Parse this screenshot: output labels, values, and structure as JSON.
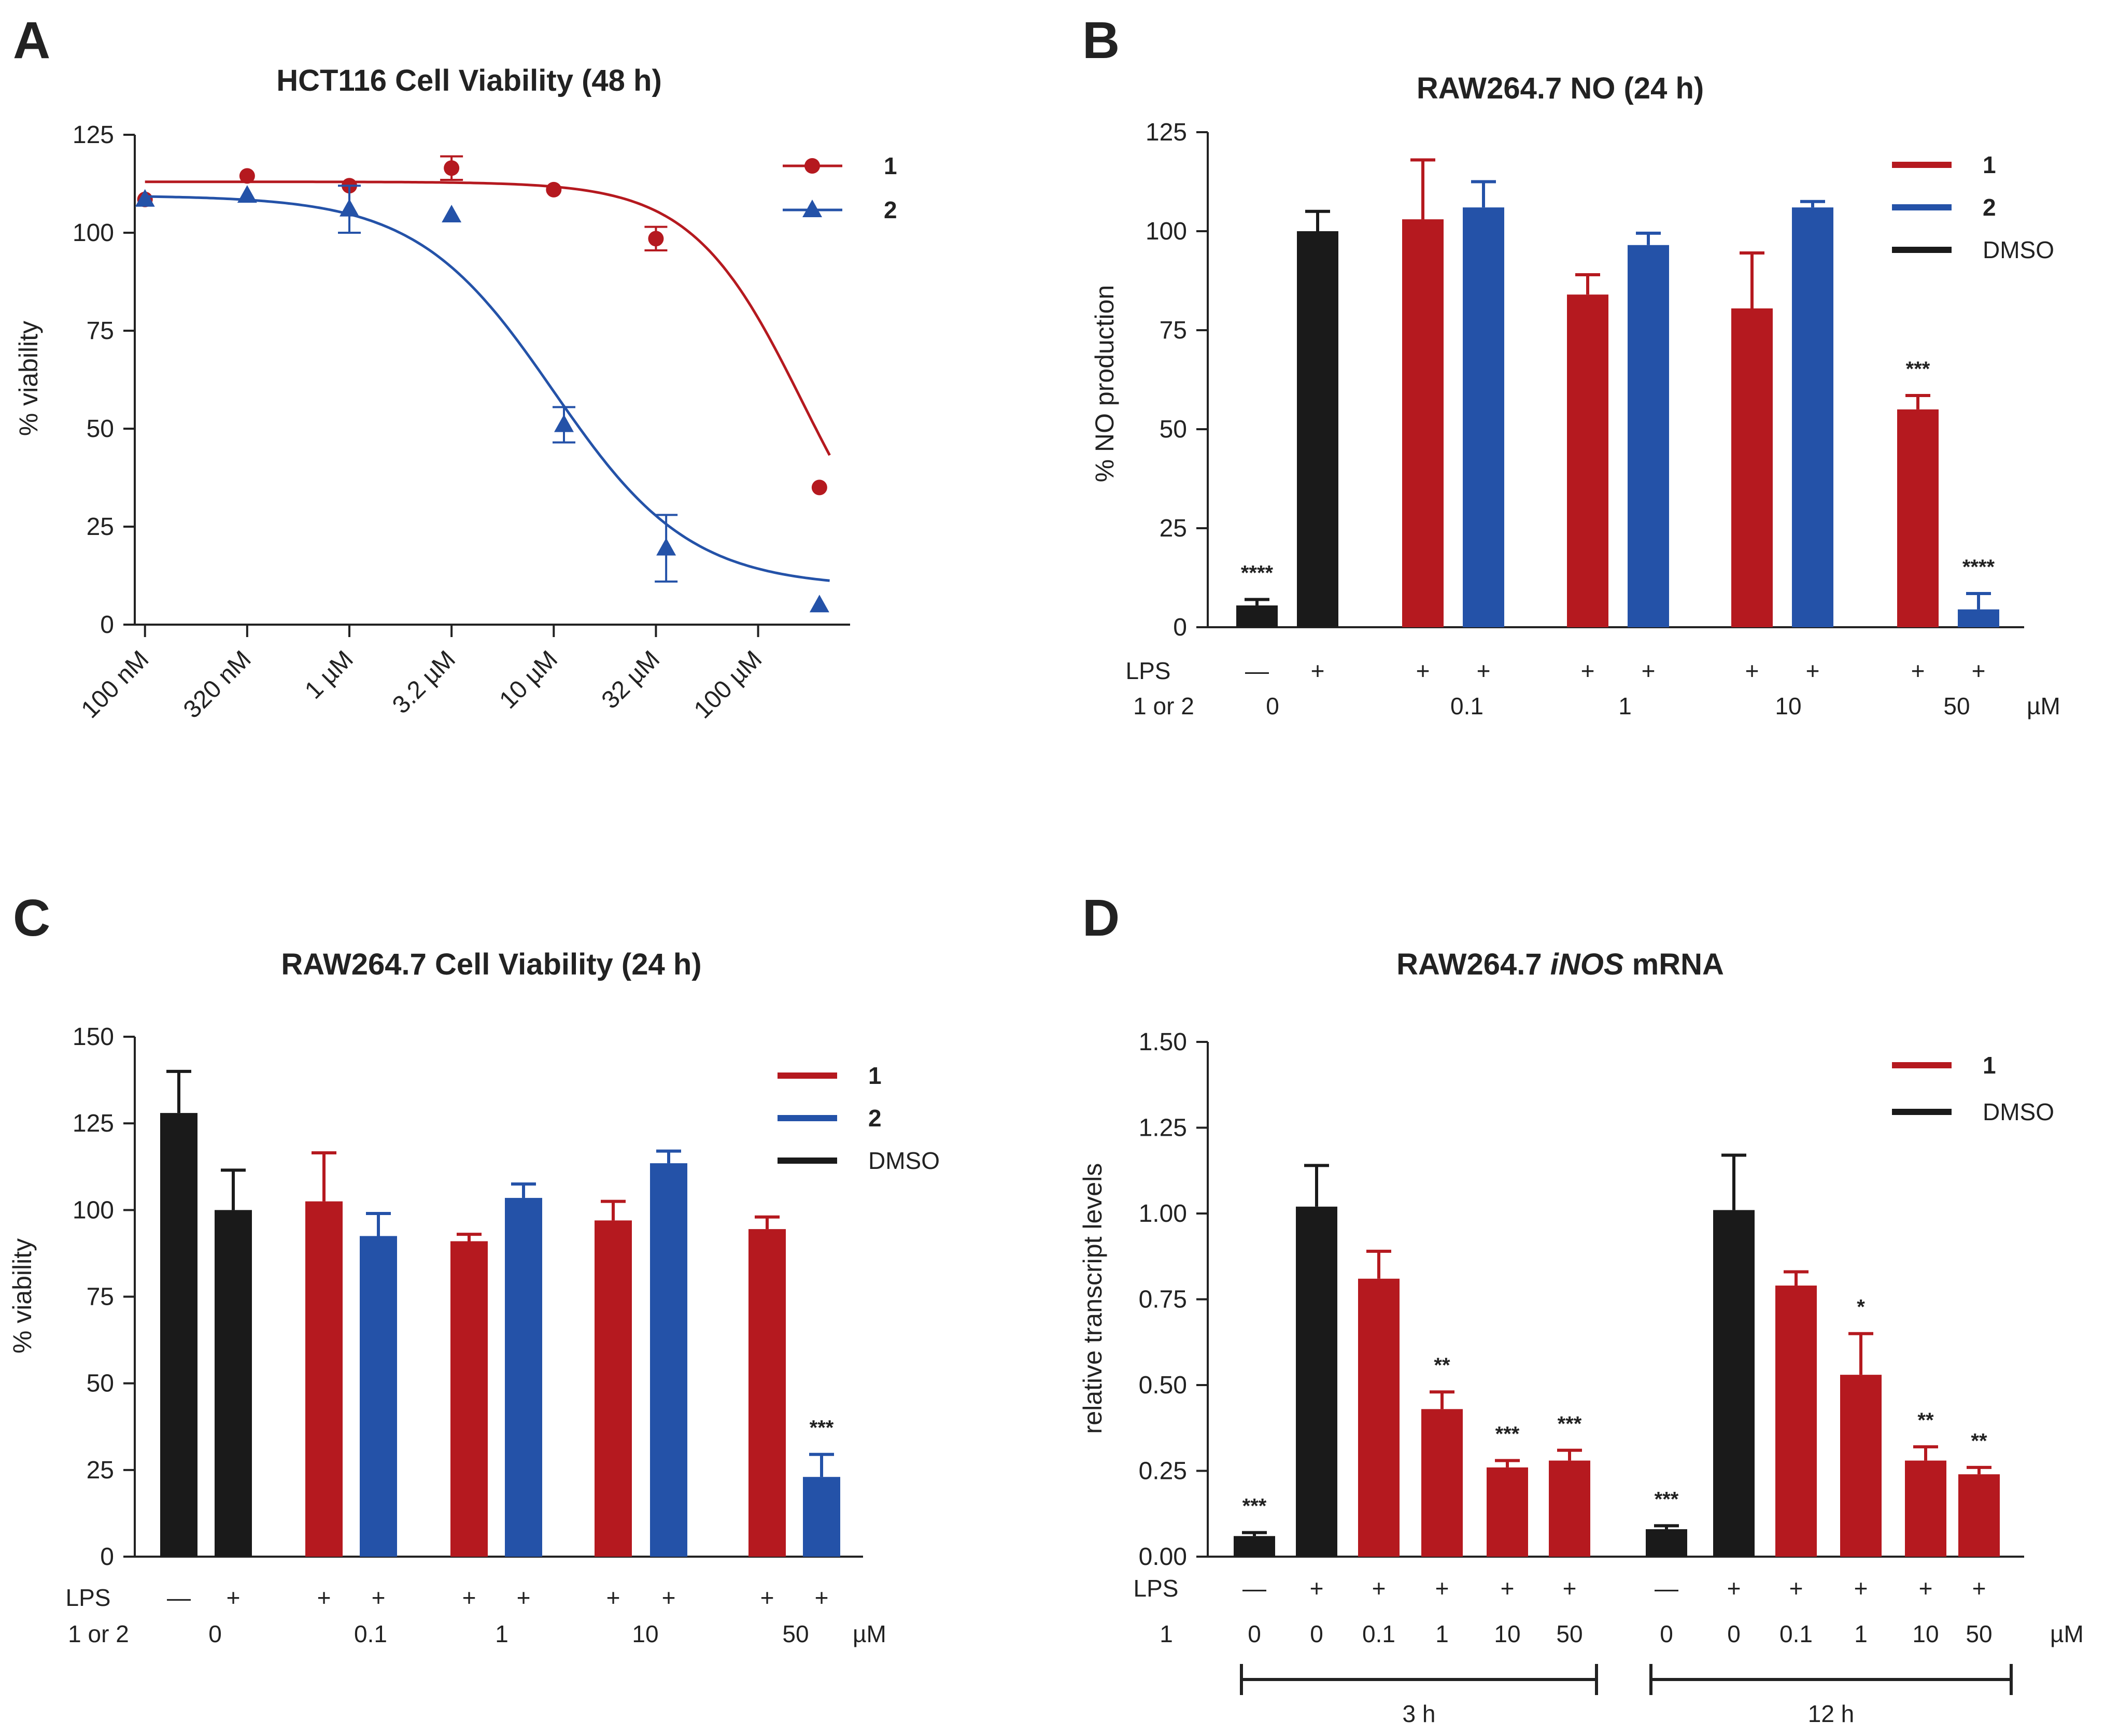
{
  "colors": {
    "red": "#b5191f",
    "blue": "#2452a8",
    "black": "#1a1a1a"
  },
  "chart_data": [
    {
      "panel": "A",
      "type": "scatter",
      "title": "HCT116 Cell Viability (48 h)",
      "xlabel": "",
      "ylabel": "% viability",
      "ylim": [
        0,
        125
      ],
      "yticks": [
        0,
        25,
        50,
        75,
        100,
        125
      ],
      "xscale": "log10 concentration (M)",
      "xlim_log": [
        -7.05,
        -3.55
      ],
      "xtick_labels": [
        "100 nM",
        "320 nM",
        "1 µM",
        "3.2 µM",
        "10 µM",
        "32 µM",
        "100 µM"
      ],
      "xtick_log": [
        -7.0,
        -6.5,
        -6.0,
        -5.5,
        -5.0,
        -4.5,
        -4.0
      ],
      "legend_position": "top-right",
      "series": [
        {
          "name": "1",
          "color": "red",
          "marker": "circle",
          "x_log": [
            -7.0,
            -6.5,
            -6.0,
            -5.5,
            -5.0,
            -4.5,
            -3.7
          ],
          "values": [
            108.5,
            114.5,
            112,
            116.5,
            111,
            98.5,
            35
          ],
          "errors": [
            0,
            0,
            0,
            3,
            0,
            3,
            0
          ],
          "fit": {
            "top": 113,
            "bottom": 0,
            "logIC50": -3.78,
            "hill": 1.6
          }
        },
        {
          "name": "2",
          "color": "blue",
          "marker": "triangle",
          "x_log": [
            -7.0,
            -6.5,
            -6.0,
            -5.5,
            -4.95,
            -4.45,
            -3.7
          ],
          "values": [
            108.5,
            109.5,
            106,
            104.5,
            51,
            19.5,
            5
          ],
          "errors": [
            0,
            0,
            6,
            0,
            4.5,
            8.5,
            0
          ],
          "fit": {
            "top": 109.5,
            "bottom": 9.5,
            "logIC50": -5.0,
            "hill": 1.3
          }
        }
      ]
    },
    {
      "panel": "B",
      "type": "bar",
      "title": "RAW264.7 NO (24 h)",
      "xlabel": "",
      "ylabel": "% NO production",
      "ylim": [
        0,
        125
      ],
      "yticks": [
        0,
        25,
        50,
        75,
        100,
        125
      ],
      "legend": [
        {
          "name": "1",
          "color": "red",
          "bold": true
        },
        {
          "name": "2",
          "color": "blue",
          "bold": true
        },
        {
          "name": "DMSO",
          "color": "black",
          "bold": false
        }
      ],
      "bars": [
        {
          "color": "black",
          "value": 5.5,
          "error": 1.5,
          "lps": "—",
          "sig": "****"
        },
        {
          "color": "black",
          "value": 100,
          "error": 5,
          "lps": "+",
          "sig": ""
        },
        {
          "color": "red",
          "value": 103,
          "error": 15,
          "lps": "+",
          "sig": ""
        },
        {
          "color": "blue",
          "value": 106,
          "error": 6.5,
          "lps": "+",
          "sig": ""
        },
        {
          "color": "red",
          "value": 84,
          "error": 5,
          "lps": "+",
          "sig": ""
        },
        {
          "color": "blue",
          "value": 96.5,
          "error": 3,
          "lps": "+",
          "sig": ""
        },
        {
          "color": "red",
          "value": 80.5,
          "error": 14,
          "lps": "+",
          "sig": ""
        },
        {
          "color": "blue",
          "value": 106,
          "error": 1.5,
          "lps": "+",
          "sig": ""
        },
        {
          "color": "red",
          "value": 55,
          "error": 3.5,
          "lps": "+",
          "sig": "***"
        },
        {
          "color": "blue",
          "value": 4.5,
          "error": 4,
          "lps": "+",
          "sig": "****"
        }
      ],
      "row_labels": {
        "lps": "LPS",
        "dose": "1 or 2",
        "unit": "µM"
      },
      "dose_labels": [
        "0",
        "0.1",
        "1",
        "10",
        "50"
      ]
    },
    {
      "panel": "C",
      "type": "bar",
      "title": "RAW264.7 Cell Viability (24 h)",
      "xlabel": "",
      "ylabel": "% viability",
      "ylim": [
        0,
        150
      ],
      "yticks": [
        0,
        25,
        50,
        75,
        100,
        125,
        150
      ],
      "legend": [
        {
          "name": "1",
          "color": "red",
          "bold": true
        },
        {
          "name": "2",
          "color": "blue",
          "bold": true
        },
        {
          "name": "DMSO",
          "color": "black",
          "bold": false
        }
      ],
      "bars": [
        {
          "color": "black",
          "value": 128,
          "error": 12,
          "lps": "—",
          "sig": ""
        },
        {
          "color": "black",
          "value": 100,
          "error": 11.5,
          "lps": "+",
          "sig": ""
        },
        {
          "color": "red",
          "value": 102.5,
          "error": 14,
          "lps": "+",
          "sig": ""
        },
        {
          "color": "blue",
          "value": 92.5,
          "error": 6.5,
          "lps": "+",
          "sig": ""
        },
        {
          "color": "red",
          "value": 91,
          "error": 2,
          "lps": "+",
          "sig": ""
        },
        {
          "color": "blue",
          "value": 103.5,
          "error": 4,
          "lps": "+",
          "sig": ""
        },
        {
          "color": "red",
          "value": 97,
          "error": 5.5,
          "lps": "+",
          "sig": ""
        },
        {
          "color": "blue",
          "value": 113.5,
          "error": 3.5,
          "lps": "+",
          "sig": ""
        },
        {
          "color": "red",
          "value": 94.5,
          "error": 3.5,
          "lps": "+",
          "sig": ""
        },
        {
          "color": "blue",
          "value": 23,
          "error": 6.5,
          "lps": "+",
          "sig": "***"
        }
      ],
      "row_labels": {
        "lps": "LPS",
        "dose": "1 or 2",
        "unit": "µM"
      },
      "dose_labels": [
        "0",
        "0.1",
        "1",
        "10",
        "50"
      ]
    },
    {
      "panel": "D",
      "type": "bar",
      "title": "RAW264.7 iNOS mRNA",
      "title_parts": [
        "RAW264.7 ",
        "iNOS",
        " mRNA"
      ],
      "xlabel": "",
      "ylabel": "relative transcript levels",
      "ylim": [
        0,
        1.5
      ],
      "yticks": [
        "0.00",
        "0.25",
        "0.50",
        "0.75",
        "1.00",
        "1.25",
        "1.50"
      ],
      "legend": [
        {
          "name": "1",
          "color": "red",
          "bold": true
        },
        {
          "name": "DMSO",
          "color": "black",
          "bold": false
        }
      ],
      "bars": [
        {
          "color": "black",
          "value": 0.06,
          "error": 0.01,
          "lps": "—",
          "dose": "0",
          "sig": "***"
        },
        {
          "color": "black",
          "value": 1.02,
          "error": 0.12,
          "lps": "+",
          "dose": "0",
          "sig": ""
        },
        {
          "color": "red",
          "value": 0.81,
          "error": 0.08,
          "lps": "+",
          "dose": "0.1",
          "sig": ""
        },
        {
          "color": "red",
          "value": 0.43,
          "error": 0.05,
          "lps": "+",
          "dose": "1",
          "sig": "**"
        },
        {
          "color": "red",
          "value": 0.26,
          "error": 0.02,
          "lps": "+",
          "dose": "10",
          "sig": "***"
        },
        {
          "color": "red",
          "value": 0.28,
          "error": 0.03,
          "lps": "+",
          "dose": "50",
          "sig": "***"
        },
        {
          "color": "black",
          "value": 0.08,
          "error": 0.01,
          "lps": "—",
          "dose": "0",
          "sig": "***"
        },
        {
          "color": "black",
          "value": 1.01,
          "error": 0.16,
          "lps": "+",
          "dose": "0",
          "sig": ""
        },
        {
          "color": "red",
          "value": 0.79,
          "error": 0.04,
          "lps": "+",
          "dose": "0.1",
          "sig": ""
        },
        {
          "color": "red",
          "value": 0.53,
          "error": 0.12,
          "lps": "+",
          "dose": "1",
          "sig": "*"
        },
        {
          "color": "red",
          "value": 0.28,
          "error": 0.04,
          "lps": "+",
          "dose": "10",
          "sig": "**"
        },
        {
          "color": "red",
          "value": 0.24,
          "error": 0.02,
          "lps": "+",
          "dose": "50",
          "sig": "**"
        }
      ],
      "row_labels": {
        "lps": "LPS",
        "dose": "1",
        "unit": "µM"
      },
      "time_groups": [
        {
          "label": "3 h"
        },
        {
          "label": "12 h"
        }
      ]
    }
  ]
}
